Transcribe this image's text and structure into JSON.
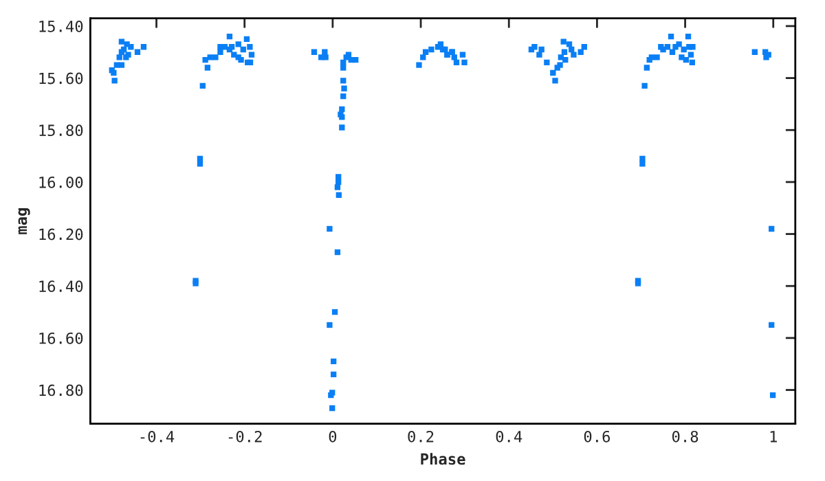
{
  "chart_data": {
    "type": "scatter",
    "xlabel": "Phase",
    "ylabel": "mag",
    "marker": "square",
    "grid": false,
    "legend": false,
    "xlim": [
      -0.55,
      1.05
    ],
    "ylim": [
      16.93,
      15.37
    ],
    "xticks": [
      -0.4,
      -0.2,
      0,
      0.2,
      0.4,
      0.6,
      0.8,
      1
    ],
    "yticks": [
      {
        "value": 15.4,
        "label": "15.40"
      },
      {
        "value": 15.6,
        "label": "15.60"
      },
      {
        "value": 15.8,
        "label": "15.80"
      },
      {
        "value": 16.0,
        "label": "16.00"
      },
      {
        "value": 16.2,
        "label": "16.20"
      },
      {
        "value": 16.4,
        "label": "16.40"
      },
      {
        "value": 16.6,
        "label": "16.60"
      },
      {
        "value": 16.8,
        "label": "16.80"
      }
    ],
    "series": [
      {
        "color": "#0a7ff5",
        "x": [
          -0.501,
          -0.495,
          -0.497,
          -0.49,
          -0.484,
          -0.479,
          -0.479,
          -0.474,
          -0.467,
          -0.464,
          -0.458,
          -0.479,
          -0.443,
          -0.429,
          -0.469,
          -0.295,
          -0.301,
          -0.301,
          -0.289,
          -0.284,
          -0.278,
          -0.266,
          -0.255,
          -0.255,
          -0.245,
          -0.234,
          -0.234,
          -0.229,
          -0.224,
          -0.214,
          -0.208,
          -0.203,
          -0.195,
          -0.193,
          -0.188,
          -0.184,
          -0.187,
          -0.214,
          -0.311,
          -0.311,
          -0.042,
          -0.026,
          -0.018,
          -0.016,
          0.024,
          0.024,
          0.031,
          0.036,
          0.042,
          0.052,
          0.024,
          0.026,
          0.024,
          0.021,
          0.018,
          0.021,
          0.021,
          0.013,
          0.013,
          0.011,
          0.014,
          -0.007,
          0.011,
          0.005,
          -0.007,
          0.002,
          0.002,
          -0.001,
          -0.004,
          -0.001,
          0.196,
          0.205,
          0.211,
          0.224,
          0.239,
          0.245,
          0.255,
          0.26,
          0.271,
          0.25,
          0.26,
          0.271,
          0.276,
          0.281,
          0.295,
          0.299,
          0.451,
          0.458,
          0.469,
          0.474,
          0.486,
          0.5,
          0.505,
          0.51,
          0.516,
          0.518,
          0.524,
          0.526,
          0.528,
          0.537,
          0.542,
          0.547,
          0.563,
          0.571,
          0.703,
          0.703,
          0.708,
          0.713,
          0.719,
          0.724,
          0.736,
          0.745,
          0.75,
          0.76,
          0.768,
          0.771,
          0.778,
          0.786,
          0.792,
          0.797,
          0.802,
          0.807,
          0.809,
          0.813,
          0.816,
          0.817,
          0.693,
          0.693,
          0.958,
          0.982,
          0.984,
          0.989,
          0.996,
          0.996,
          0.999
        ],
        "values": [
          15.57,
          15.61,
          15.58,
          15.55,
          15.52,
          15.46,
          15.5,
          15.49,
          15.47,
          15.51,
          15.48,
          15.55,
          15.5,
          15.48,
          15.52,
          15.63,
          15.91,
          15.93,
          15.53,
          15.56,
          15.52,
          15.52,
          15.48,
          15.5,
          15.48,
          15.44,
          15.49,
          15.48,
          15.51,
          15.47,
          15.53,
          15.49,
          15.45,
          15.54,
          15.48,
          15.51,
          15.54,
          15.52,
          16.38,
          16.39,
          15.5,
          15.52,
          15.5,
          15.52,
          15.54,
          15.56,
          15.52,
          15.51,
          15.53,
          15.53,
          15.61,
          15.64,
          15.67,
          15.72,
          15.74,
          15.75,
          15.79,
          15.98,
          16.0,
          16.02,
          16.05,
          16.18,
          16.27,
          16.5,
          16.55,
          16.69,
          16.74,
          16.81,
          16.82,
          16.87,
          15.55,
          15.52,
          15.5,
          15.49,
          15.48,
          15.47,
          15.49,
          15.51,
          15.5,
          15.49,
          15.51,
          15.5,
          15.52,
          15.54,
          15.51,
          15.54,
          15.49,
          15.48,
          15.51,
          15.49,
          15.54,
          15.58,
          15.61,
          15.56,
          15.55,
          15.52,
          15.46,
          15.5,
          15.53,
          15.47,
          15.49,
          15.51,
          15.5,
          15.48,
          15.91,
          15.93,
          15.63,
          15.56,
          15.53,
          15.52,
          15.52,
          15.48,
          15.49,
          15.48,
          15.44,
          15.5,
          15.48,
          15.47,
          15.52,
          15.49,
          15.53,
          15.44,
          15.48,
          15.51,
          15.54,
          15.48,
          16.38,
          16.39,
          15.5,
          15.5,
          15.52,
          15.51,
          16.18,
          16.55,
          16.82
        ]
      }
    ]
  }
}
